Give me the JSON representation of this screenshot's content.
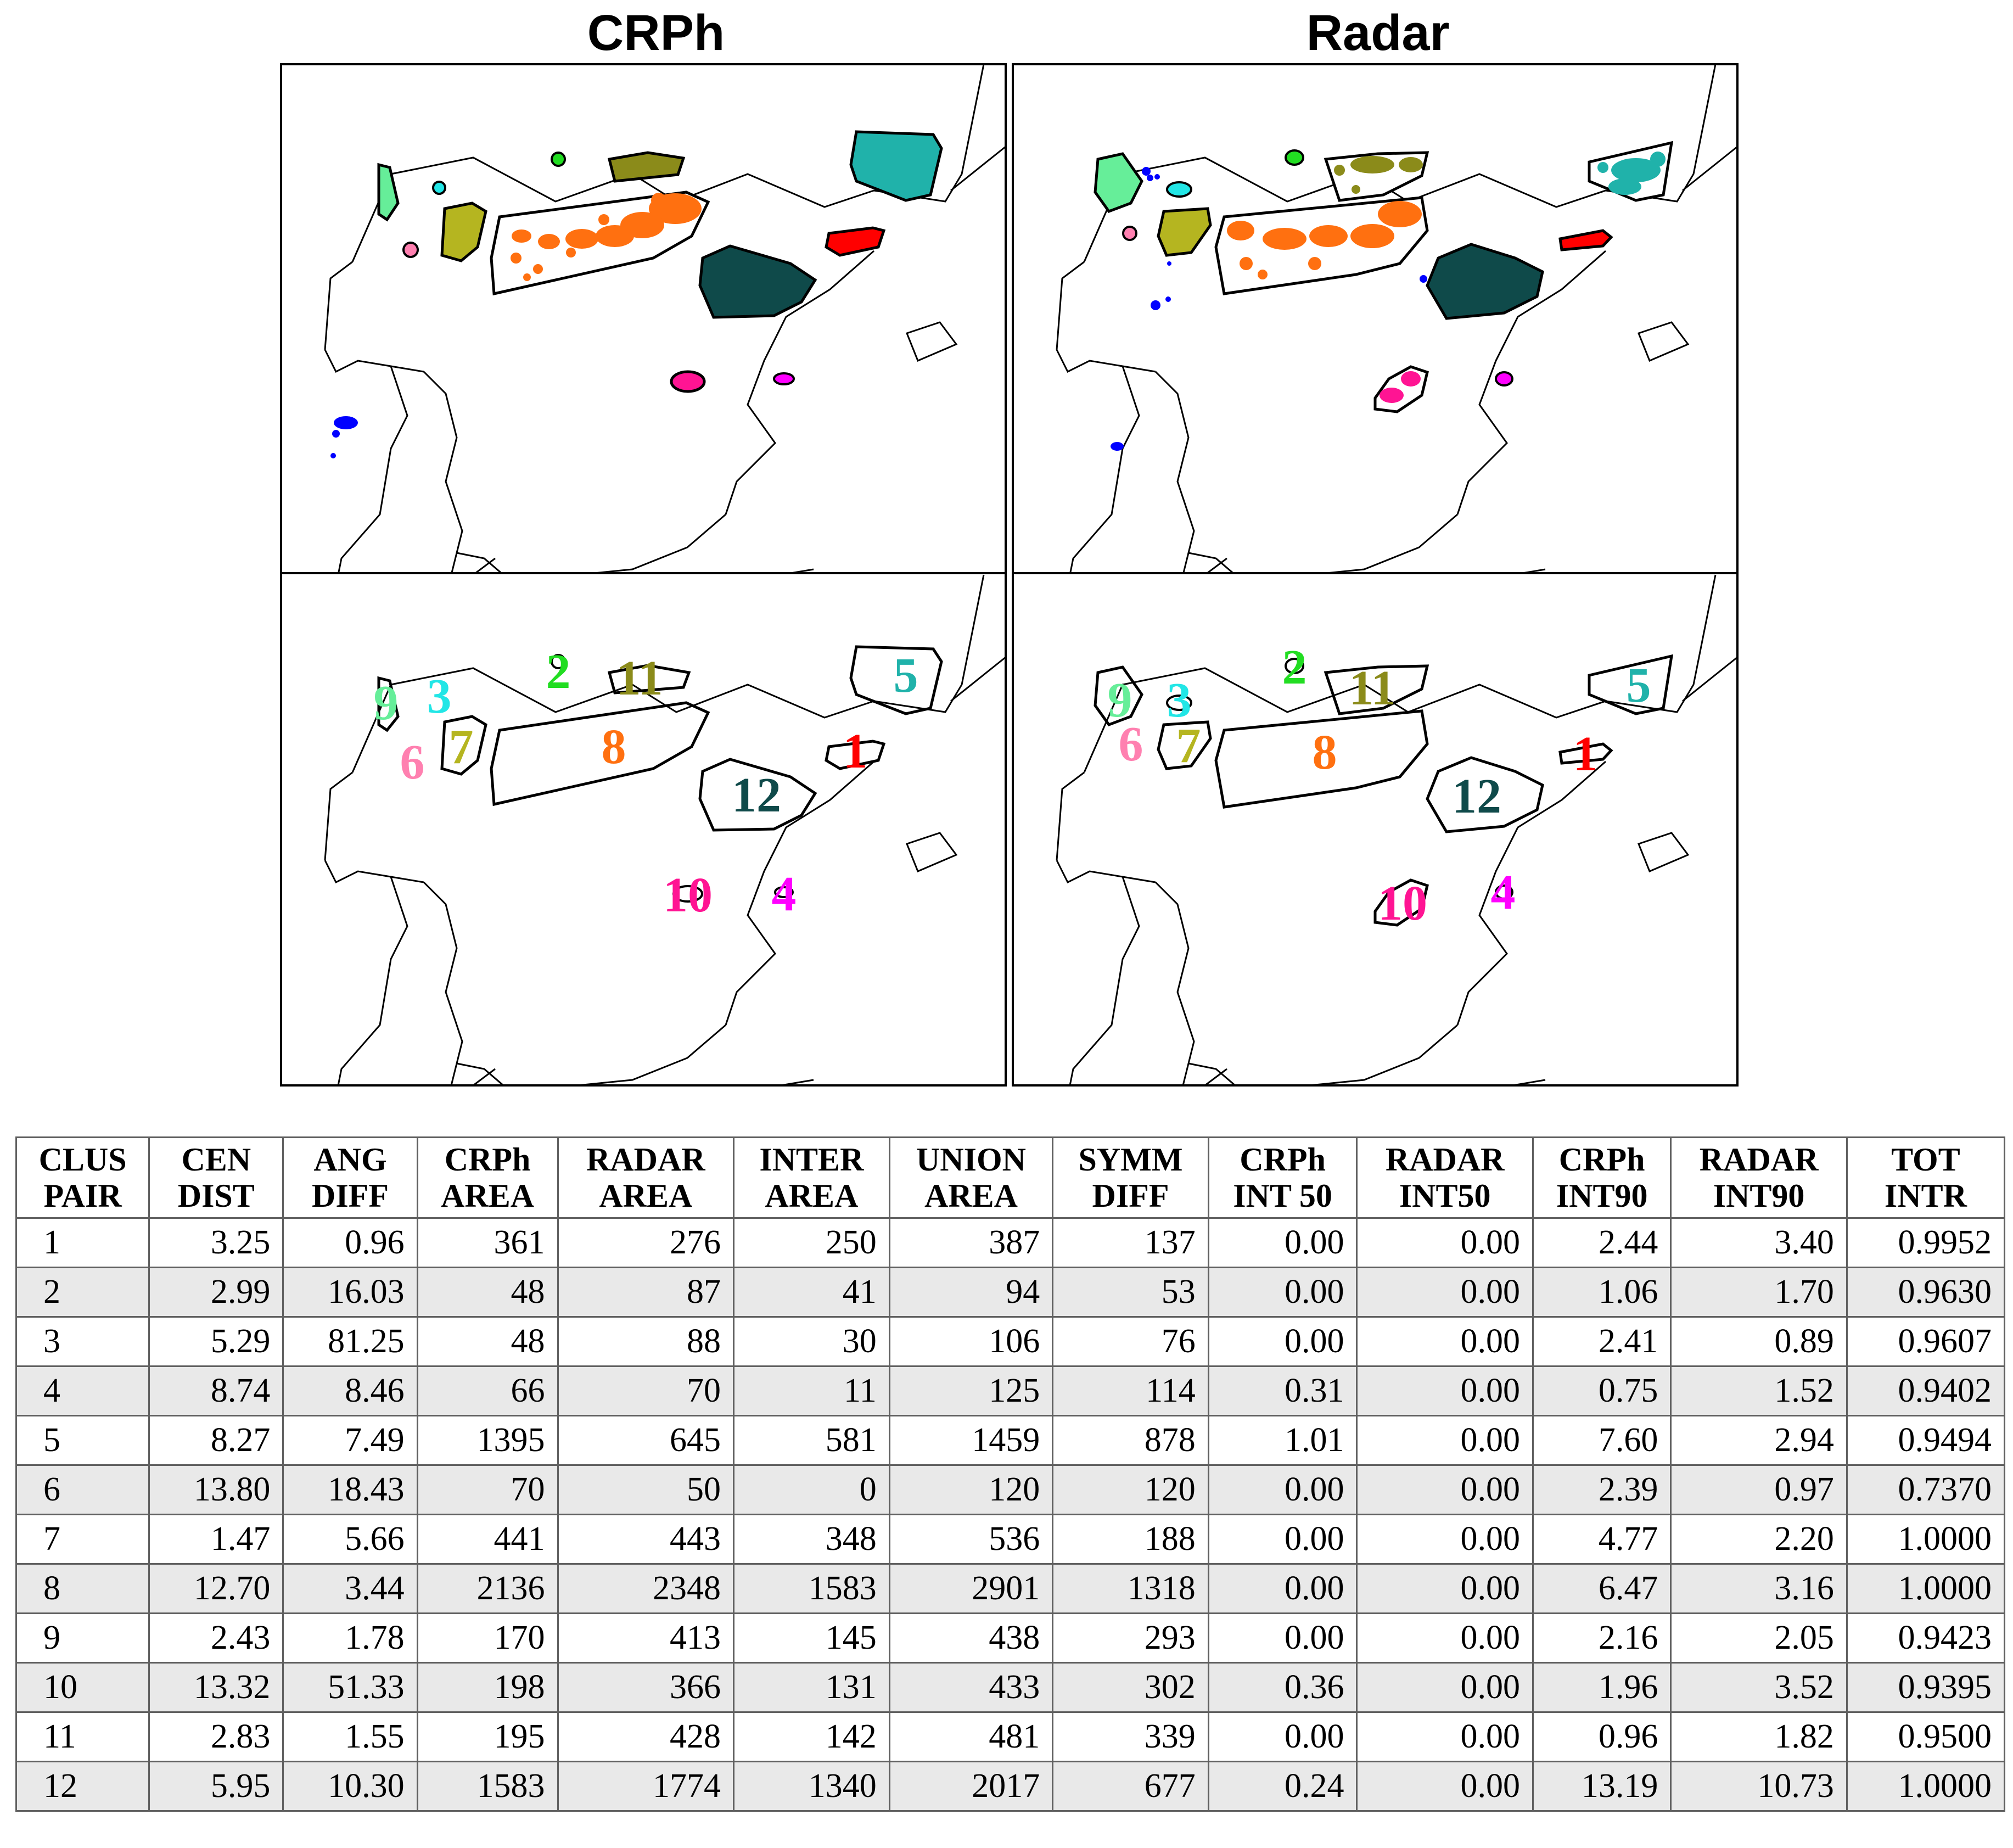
{
  "panels": {
    "left_title": "CRPh",
    "right_title": "Radar"
  },
  "labels": [
    "1",
    "2",
    "3",
    "4",
    "5",
    "6",
    "7",
    "8",
    "9",
    "10",
    "11",
    "12"
  ],
  "colors": {
    "c1": "#ff0000",
    "c2": "#22dd22",
    "c3": "#22e6e6",
    "c4": "#ff00ff",
    "c5": "#20b2aa",
    "c6": "#ff80b0",
    "c7": "#b5b520",
    "c8": "#ff7010",
    "c9": "#66ee99",
    "c10": "#ff1493",
    "c11": "#8b8b1a",
    "c12": "#0f4a4a",
    "extra": "#0000ff",
    "outline": "#000000"
  },
  "table": {
    "headers": [
      [
        "CLUS",
        "PAIR"
      ],
      [
        "CEN",
        "DIST"
      ],
      [
        "ANG",
        "DIFF"
      ],
      [
        "CRPh",
        "AREA"
      ],
      [
        "RADAR",
        "AREA"
      ],
      [
        "INTER",
        "AREA"
      ],
      [
        "UNION",
        "AREA"
      ],
      [
        "SYMM",
        "DIFF"
      ],
      [
        "CRPh",
        "INT 50"
      ],
      [
        "RADAR",
        "INT50"
      ],
      [
        "CRPh",
        "INT90"
      ],
      [
        "RADAR",
        "INT90"
      ],
      [
        "TOT",
        "INTR"
      ]
    ],
    "rows": [
      [
        "1",
        "3.25",
        "0.96",
        "361",
        "276",
        "250",
        "387",
        "137",
        "0.00",
        "0.00",
        "2.44",
        "3.40",
        "0.9952"
      ],
      [
        "2",
        "2.99",
        "16.03",
        "48",
        "87",
        "41",
        "94",
        "53",
        "0.00",
        "0.00",
        "1.06",
        "1.70",
        "0.9630"
      ],
      [
        "3",
        "5.29",
        "81.25",
        "48",
        "88",
        "30",
        "106",
        "76",
        "0.00",
        "0.00",
        "2.41",
        "0.89",
        "0.9607"
      ],
      [
        "4",
        "8.74",
        "8.46",
        "66",
        "70",
        "11",
        "125",
        "114",
        "0.31",
        "0.00",
        "0.75",
        "1.52",
        "0.9402"
      ],
      [
        "5",
        "8.27",
        "7.49",
        "1395",
        "645",
        "581",
        "1459",
        "878",
        "1.01",
        "0.00",
        "7.60",
        "2.94",
        "0.9494"
      ],
      [
        "6",
        "13.80",
        "18.43",
        "70",
        "50",
        "0",
        "120",
        "120",
        "0.00",
        "0.00",
        "2.39",
        "0.97",
        "0.7370"
      ],
      [
        "7",
        "1.47",
        "5.66",
        "441",
        "443",
        "348",
        "536",
        "188",
        "0.00",
        "0.00",
        "4.77",
        "2.20",
        "1.0000"
      ],
      [
        "8",
        "12.70",
        "3.44",
        "2136",
        "2348",
        "1583",
        "2901",
        "1318",
        "0.00",
        "0.00",
        "6.47",
        "3.16",
        "1.0000"
      ],
      [
        "9",
        "2.43",
        "1.78",
        "170",
        "413",
        "145",
        "438",
        "293",
        "0.00",
        "0.00",
        "2.16",
        "2.05",
        "0.9423"
      ],
      [
        "10",
        "13.32",
        "51.33",
        "198",
        "366",
        "131",
        "433",
        "302",
        "0.36",
        "0.00",
        "1.96",
        "3.52",
        "0.9395"
      ],
      [
        "11",
        "2.83",
        "1.55",
        "195",
        "428",
        "142",
        "481",
        "339",
        "0.00",
        "0.00",
        "0.96",
        "1.82",
        "0.9500"
      ],
      [
        "12",
        "5.95",
        "10.30",
        "1583",
        "1774",
        "1340",
        "2017",
        "677",
        "0.24",
        "0.00",
        "13.19",
        "10.73",
        "1.0000"
      ]
    ]
  }
}
